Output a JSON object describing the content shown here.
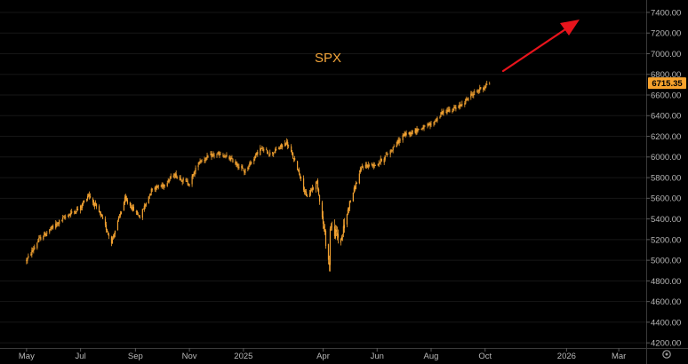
{
  "chart_data": {
    "type": "candlestick",
    "title": "SPX",
    "last_price": "6715.35",
    "ylim": [
      4150,
      7520
    ],
    "y_ticks": [
      "7400.00",
      "7200.00",
      "7000.00",
      "6800.00",
      "6600.00",
      "6400.00",
      "6200.00",
      "6000.00",
      "5800.00",
      "5600.00",
      "5400.00",
      "5200.00",
      "5000.00",
      "4800.00",
      "4600.00",
      "4400.00",
      "4200.00"
    ],
    "x_ticks": [
      "May",
      "Jul",
      "Sep",
      "Nov",
      "2025",
      "Apr",
      "Jun",
      "Aug",
      "Oct",
      "2026",
      "Mar"
    ],
    "series": [
      {
        "x": [
          "2024-05-01",
          "2024-05-15",
          "2024-06-01",
          "2024-06-15",
          "2024-07-01",
          "2024-07-10",
          "2024-07-24",
          "2024-08-05",
          "2024-08-20",
          "2024-09-06",
          "2024-09-20",
          "2024-10-01",
          "2024-10-15",
          "2024-11-01",
          "2024-11-12",
          "2024-12-01",
          "2024-12-18",
          "2025-01-02",
          "2025-01-20",
          "2025-02-01",
          "2025-02-19",
          "2025-03-05",
          "2025-03-13",
          "2025-03-25",
          "2025-04-04",
          "2025-04-08",
          "2025-04-09",
          "2025-04-21",
          "2025-05-01",
          "2025-05-15",
          "2025-06-01",
          "2025-06-15",
          "2025-07-01",
          "2025-07-15",
          "2025-08-01",
          "2025-08-15",
          "2025-09-01",
          "2025-09-15",
          "2025-10-01",
          "2025-10-06"
        ],
        "values": [
          5000,
          5200,
          5330,
          5430,
          5510,
          5640,
          5430,
          5180,
          5590,
          5420,
          5700,
          5720,
          5830,
          5740,
          5960,
          6030,
          5980,
          5860,
          6080,
          6030,
          6140,
          5850,
          5610,
          5760,
          5180,
          4950,
          5330,
          5190,
          5560,
          5910,
          5930,
          6050,
          6210,
          6260,
          6310,
          6440,
          6480,
          6600,
          6690,
          6715
        ]
      }
    ],
    "colors": {
      "candles": "#f0a030",
      "price_label_bg": "#f7a22c",
      "arrow": "#e8141c",
      "grid": "#161616",
      "axis_text": "#b8b8b8"
    },
    "annotations": [
      {
        "type": "arrow",
        "icon": "red-arrow",
        "direction": "up-right"
      }
    ],
    "grid": true,
    "legend": "none"
  }
}
